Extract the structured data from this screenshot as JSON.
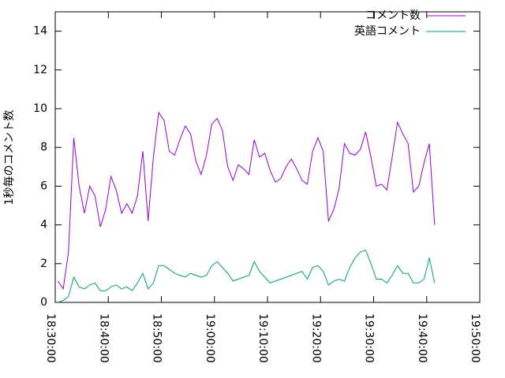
{
  "chart_data": {
    "type": "line",
    "ylabel": "1秒毎のコメント数",
    "x": [
      "18:30:30",
      "18:31:30",
      "18:32:30",
      "18:33:30",
      "18:34:30",
      "18:35:30",
      "18:36:30",
      "18:37:30",
      "18:38:30",
      "18:39:30",
      "18:40:30",
      "18:41:30",
      "18:42:30",
      "18:43:30",
      "18:44:30",
      "18:45:30",
      "18:46:30",
      "18:47:30",
      "18:48:30",
      "18:49:30",
      "18:50:30",
      "18:51:30",
      "18:52:30",
      "18:53:30",
      "18:54:30",
      "18:55:30",
      "18:56:30",
      "18:57:30",
      "18:58:30",
      "18:59:30",
      "19:00:30",
      "19:01:30",
      "19:02:30",
      "19:03:30",
      "19:04:30",
      "19:05:30",
      "19:06:30",
      "19:07:30",
      "19:08:30",
      "19:09:30",
      "19:10:30",
      "19:11:30",
      "19:12:30",
      "19:13:30",
      "19:14:30",
      "19:15:30",
      "19:16:30",
      "19:17:30",
      "19:18:30",
      "19:19:30",
      "19:20:30",
      "19:21:30",
      "19:22:30",
      "19:23:30",
      "19:24:30",
      "19:25:30",
      "19:26:30",
      "19:27:30",
      "19:28:30",
      "19:29:30",
      "19:30:30",
      "19:31:30",
      "19:32:30",
      "19:33:30",
      "19:34:30",
      "19:35:30",
      "19:36:30",
      "19:37:30",
      "19:38:30",
      "19:39:30",
      "19:40:30",
      "19:41:30"
    ],
    "series": [
      {
        "name": "コメント数",
        "color": "#9400d3",
        "values": [
          1.1,
          0.7,
          2.6,
          8.5,
          6.0,
          4.6,
          6.0,
          5.5,
          3.9,
          4.8,
          6.5,
          5.8,
          4.6,
          5.1,
          4.6,
          5.5,
          7.8,
          4.2,
          7.5,
          9.8,
          9.4,
          7.8,
          7.6,
          8.4,
          9.1,
          8.7,
          7.3,
          6.6,
          7.6,
          9.2,
          9.5,
          8.9,
          7.0,
          6.3,
          7.1,
          6.9,
          6.6,
          8.4,
          7.5,
          7.7,
          6.8,
          6.2,
          6.4,
          7.0,
          7.4,
          6.9,
          6.3,
          6.1,
          7.8,
          8.5,
          7.8,
          4.2,
          4.8,
          5.9,
          8.2,
          7.7,
          7.6,
          7.9,
          8.8,
          7.5,
          6.0,
          6.1,
          5.8,
          7.5,
          9.3,
          8.7,
          8.2,
          5.7,
          6.0,
          7.2,
          8.2,
          4.0
        ]
      },
      {
        "name": "英語コメント",
        "color": "#009e73",
        "values": [
          0.0,
          0.1,
          0.3,
          1.3,
          0.8,
          0.7,
          0.9,
          1.0,
          0.6,
          0.6,
          0.8,
          0.9,
          0.7,
          0.8,
          0.6,
          1.0,
          1.5,
          0.7,
          1.0,
          1.9,
          1.9,
          1.7,
          1.5,
          1.4,
          1.3,
          1.5,
          1.4,
          1.3,
          1.4,
          1.9,
          2.1,
          1.8,
          1.5,
          1.1,
          1.2,
          1.3,
          1.4,
          2.1,
          1.6,
          1.3,
          1.0,
          1.1,
          1.2,
          1.3,
          1.4,
          1.5,
          1.6,
          1.2,
          1.8,
          1.9,
          1.6,
          0.9,
          1.1,
          1.2,
          1.1,
          1.8,
          2.3,
          2.6,
          2.7,
          2.0,
          1.2,
          1.2,
          1.0,
          1.4,
          1.9,
          1.5,
          1.5,
          1.0,
          1.0,
          1.2,
          2.3,
          1.0
        ]
      }
    ],
    "xlim": [
      "18:30:00",
      "19:50:00"
    ],
    "xticks": [
      "18:30:00",
      "18:40:00",
      "18:50:00",
      "19:00:00",
      "19:10:00",
      "19:20:00",
      "19:30:00",
      "19:40:00",
      "19:50:00"
    ],
    "ylim": [
      0,
      15
    ],
    "yticks": [
      0,
      2,
      4,
      6,
      8,
      10,
      12,
      14
    ],
    "legend": "top-right"
  }
}
